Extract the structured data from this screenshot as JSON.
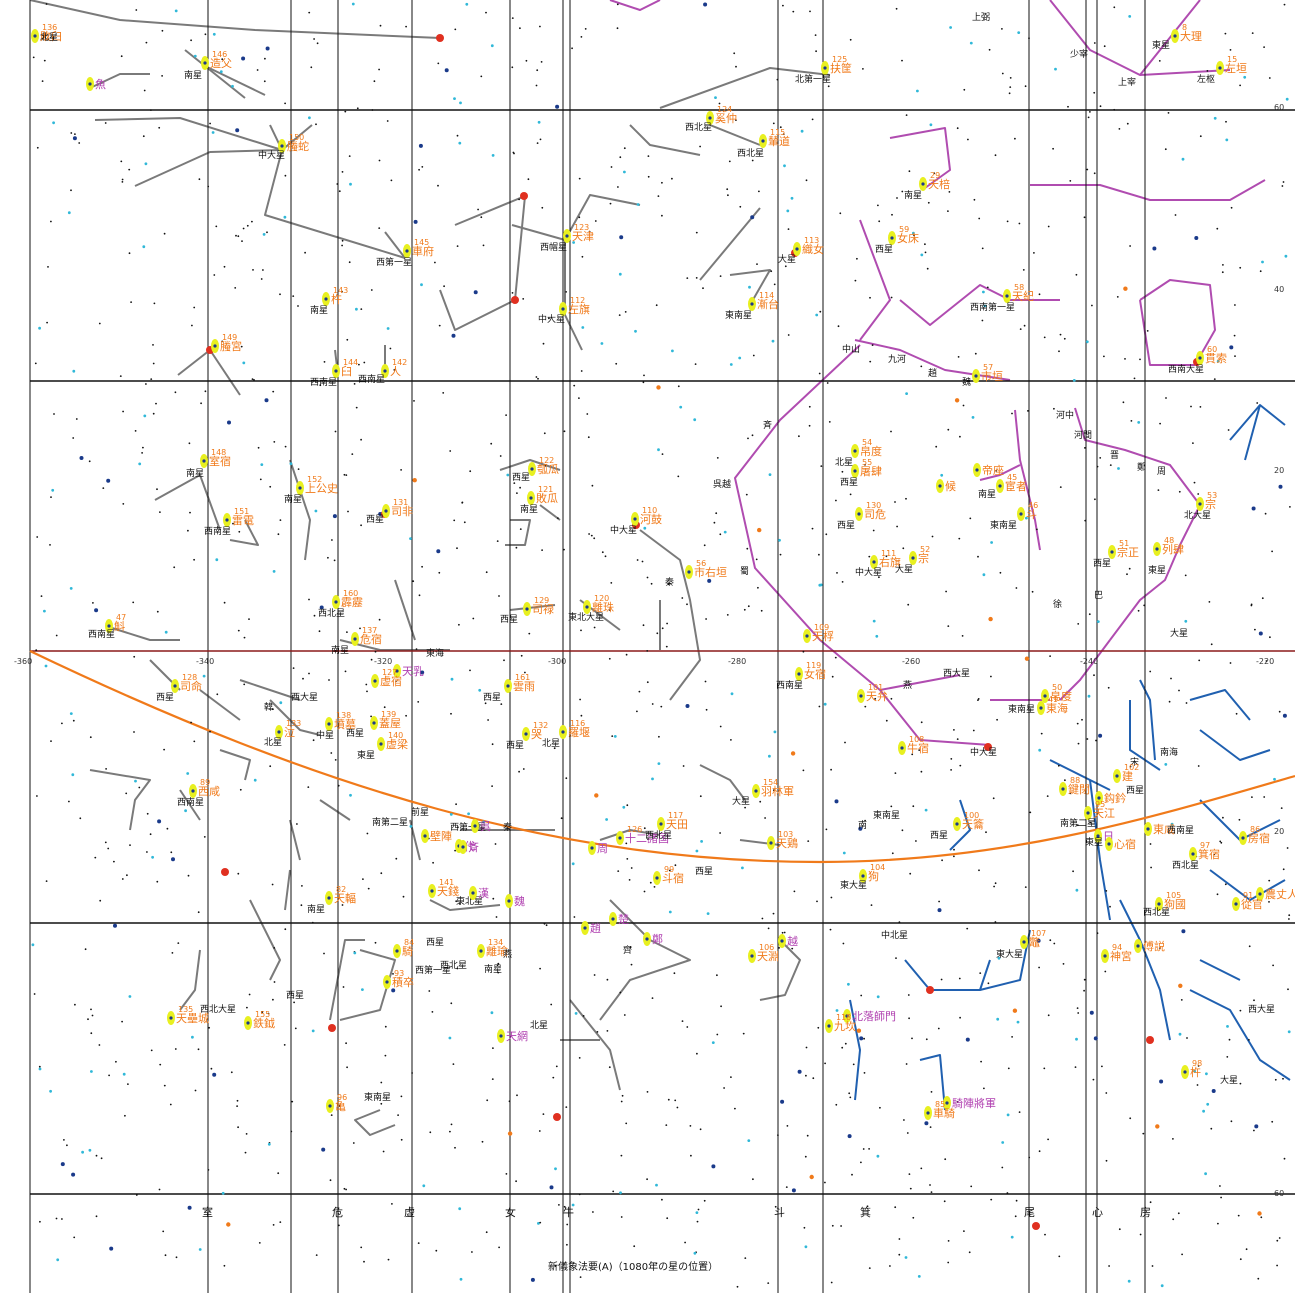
{
  "caption": "新儀象法要(A)（1080年の星の位置）",
  "ra_ticks": [
    "-360",
    "-340",
    "-320",
    "-300",
    "-280",
    "-260",
    "-240",
    "-220"
  ],
  "dec_ticks": [
    "60",
    "40",
    "20",
    "20",
    "60"
  ],
  "mansions": [
    "室",
    "危",
    "虚",
    "女",
    "牛",
    "斗",
    "箕",
    "尾",
    "心",
    "房"
  ],
  "colors": {
    "grid": "#111111",
    "equator": "#8b1a1a",
    "ecliptic": "#f07a1a",
    "gray_lines": "#7a7a7a",
    "purple_lines": "#b04cb0",
    "blue_lines": "#2060b0",
    "label_orange": "#f07a1a",
    "label_purple": "#b040b0",
    "star_yellow": "#e8f020",
    "star_red": "#e03020",
    "star_cyan": "#30b8d8",
    "star_navy": "#1a3a8a"
  },
  "labels": [
    {
      "t": "上弼",
      "c": "k",
      "n": ""
    },
    {
      "t": "少宰",
      "c": "k",
      "n": ""
    },
    {
      "t": "上宰",
      "c": "k",
      "n": ""
    },
    {
      "t": "東星",
      "c": "k",
      "n": ""
    },
    {
      "t": "大理",
      "c": "o",
      "n": "8"
    },
    {
      "t": "左垣",
      "c": "o",
      "n": "15"
    },
    {
      "t": "左枢",
      "c": "k",
      "n": ""
    },
    {
      "t": "造父",
      "c": "o",
      "n": "146"
    },
    {
      "t": "南星",
      "c": "k",
      "n": ""
    },
    {
      "t": "魚",
      "c": "p",
      "n": ""
    },
    {
      "t": "扶筐",
      "c": "o",
      "n": "125"
    },
    {
      "t": "北第一星",
      "c": "k",
      "n": ""
    },
    {
      "t": "螣蛇",
      "c": "o",
      "n": "150"
    },
    {
      "t": "中大星",
      "c": "k",
      "n": ""
    },
    {
      "t": "奚仲",
      "c": "o",
      "n": "124"
    },
    {
      "t": "西北星",
      "c": "k",
      "n": ""
    },
    {
      "t": "輦道",
      "c": "o",
      "n": "115"
    },
    {
      "t": "西北星",
      "c": "k",
      "n": ""
    },
    {
      "t": "天棓",
      "c": "o",
      "n": "29"
    },
    {
      "t": "南星",
      "c": "k",
      "n": ""
    },
    {
      "t": "車府",
      "c": "o",
      "n": "145"
    },
    {
      "t": "西第一星",
      "c": "k",
      "n": ""
    },
    {
      "t": "天津",
      "c": "o",
      "n": "123"
    },
    {
      "t": "西帽星",
      "c": "k",
      "n": ""
    },
    {
      "t": "織女",
      "c": "o",
      "n": "113"
    },
    {
      "t": "大星",
      "c": "k",
      "n": ""
    },
    {
      "t": "女床",
      "c": "o",
      "n": "59"
    },
    {
      "t": "西星",
      "c": "k",
      "n": ""
    },
    {
      "t": "杵",
      "c": "o",
      "n": "143"
    },
    {
      "t": "南星",
      "c": "k",
      "n": ""
    },
    {
      "t": "左旗",
      "c": "o",
      "n": "112"
    },
    {
      "t": "中大星",
      "c": "k",
      "n": ""
    },
    {
      "t": "漸台",
      "c": "o",
      "n": "114"
    },
    {
      "t": "東南星",
      "c": "k",
      "n": ""
    },
    {
      "t": "天紀",
      "c": "o",
      "n": "58"
    },
    {
      "t": "西南第一星",
      "c": "k",
      "n": ""
    },
    {
      "t": "螣宮",
      "c": "o",
      "n": "149"
    },
    {
      "t": "臼",
      "c": "o",
      "n": "144"
    },
    {
      "t": "西南星",
      "c": "k",
      "n": ""
    },
    {
      "t": "人",
      "c": "o",
      "n": "142"
    },
    {
      "t": "西南星",
      "c": "k",
      "n": ""
    },
    {
      "t": "中山",
      "c": "k",
      "n": ""
    },
    {
      "t": "九河",
      "c": "k",
      "n": ""
    },
    {
      "t": "趙",
      "c": "k",
      "n": ""
    },
    {
      "t": "魏",
      "c": "k",
      "n": ""
    },
    {
      "t": "市垣",
      "c": "o",
      "n": "57"
    },
    {
      "t": "貫索",
      "c": "o",
      "n": "60"
    },
    {
      "t": "西南大星",
      "c": "k",
      "n": ""
    },
    {
      "t": "河中",
      "c": "k",
      "n": ""
    },
    {
      "t": "河間",
      "c": "k",
      "n": ""
    },
    {
      "t": "晋",
      "c": "k",
      "n": ""
    },
    {
      "t": "鄭",
      "c": "k",
      "n": ""
    },
    {
      "t": "周",
      "c": "k",
      "n": ""
    },
    {
      "t": "斉",
      "c": "k",
      "n": ""
    },
    {
      "t": "室宿",
      "c": "o",
      "n": "148"
    },
    {
      "t": "南星",
      "c": "k",
      "n": ""
    },
    {
      "t": "上公史",
      "c": "o",
      "n": "152"
    },
    {
      "t": "南星",
      "c": "k",
      "n": ""
    },
    {
      "t": "瓠瓜",
      "c": "o",
      "n": "122"
    },
    {
      "t": "西星",
      "c": "k",
      "n": ""
    },
    {
      "t": "敗瓜",
      "c": "o",
      "n": "121"
    },
    {
      "t": "南星",
      "c": "k",
      "n": ""
    },
    {
      "t": "帛度",
      "c": "o",
      "n": "54"
    },
    {
      "t": "北星",
      "c": "k",
      "n": ""
    },
    {
      "t": "屠肆",
      "c": "o",
      "n": "55"
    },
    {
      "t": "西星",
      "c": "k",
      "n": ""
    },
    {
      "t": "帝座",
      "c": "o",
      "n": ""
    },
    {
      "t": "候",
      "c": "o",
      "n": ""
    },
    {
      "t": "宦者",
      "c": "o",
      "n": "45"
    },
    {
      "t": "南星",
      "c": "k",
      "n": ""
    },
    {
      "t": "斗",
      "c": "o",
      "n": "46"
    },
    {
      "t": "東南星",
      "c": "k",
      "n": ""
    },
    {
      "t": "呉越",
      "c": "k",
      "n": ""
    },
    {
      "t": "河鼓",
      "c": "o",
      "n": "110"
    },
    {
      "t": "中大星",
      "c": "k",
      "n": ""
    },
    {
      "t": "雷電",
      "c": "o",
      "n": "151"
    },
    {
      "t": "西南星",
      "c": "k",
      "n": ""
    },
    {
      "t": "司非",
      "c": "o",
      "n": "131"
    },
    {
      "t": "西星",
      "c": "k",
      "n": ""
    },
    {
      "t": "司危",
      "c": "o",
      "n": "130"
    },
    {
      "t": "西星",
      "c": "k",
      "n": ""
    },
    {
      "t": "宗",
      "c": "o",
      "n": "53"
    },
    {
      "t": "北大星",
      "c": "k",
      "n": ""
    },
    {
      "t": "市右垣",
      "c": "o",
      "n": "56"
    },
    {
      "t": "秦",
      "c": "k",
      "n": ""
    },
    {
      "t": "右旗",
      "c": "o",
      "n": "111"
    },
    {
      "t": "中大星",
      "c": "k",
      "n": ""
    },
    {
      "t": "宗",
      "c": "o",
      "n": "52"
    },
    {
      "t": "大星",
      "c": "k",
      "n": ""
    },
    {
      "t": "宗正",
      "c": "o",
      "n": "51"
    },
    {
      "t": "西星",
      "c": "k",
      "n": ""
    },
    {
      "t": "列肆",
      "c": "o",
      "n": "48"
    },
    {
      "t": "東星",
      "c": "k",
      "n": ""
    },
    {
      "t": "蜀",
      "c": "k",
      "n": ""
    },
    {
      "t": "巴",
      "c": "k",
      "n": ""
    },
    {
      "t": "徐",
      "c": "k",
      "n": ""
    },
    {
      "t": "斛",
      "c": "o",
      "n": "47"
    },
    {
      "t": "西南星",
      "c": "k",
      "n": ""
    },
    {
      "t": "霹靂",
      "c": "o",
      "n": "160"
    },
    {
      "t": "西北星",
      "c": "k",
      "n": ""
    },
    {
      "t": "危宿",
      "c": "o",
      "n": "137"
    },
    {
      "t": "南星",
      "c": "k",
      "n": ""
    },
    {
      "t": "司禄",
      "c": "o",
      "n": "129"
    },
    {
      "t": "西星",
      "c": "k",
      "n": ""
    },
    {
      "t": "離珠",
      "c": "o",
      "n": "120"
    },
    {
      "t": "東北大星",
      "c": "k",
      "n": ""
    },
    {
      "t": "天桴",
      "c": "o",
      "n": "109"
    },
    {
      "t": "大星",
      "c": "k",
      "n": ""
    },
    {
      "t": "東海",
      "c": "k",
      "n": ""
    },
    {
      "t": "天乳",
      "c": "p",
      "n": ""
    },
    {
      "t": "虚宿",
      "c": "o",
      "n": "127"
    },
    {
      "t": "司命",
      "c": "o",
      "n": "128"
    },
    {
      "t": "西星",
      "c": "k",
      "n": ""
    },
    {
      "t": "雲雨",
      "c": "o",
      "n": "161"
    },
    {
      "t": "西星",
      "c": "k",
      "n": ""
    },
    {
      "t": "女宿",
      "c": "o",
      "n": "119"
    },
    {
      "t": "西南星",
      "c": "k",
      "n": ""
    },
    {
      "t": "天弁",
      "c": "o",
      "n": "101"
    },
    {
      "t": "西大星",
      "c": "k",
      "n": ""
    },
    {
      "t": "燕",
      "c": "k",
      "n": ""
    },
    {
      "t": "帛度",
      "c": "o",
      "n": "50"
    },
    {
      "t": "東南星",
      "c": "k",
      "n": ""
    },
    {
      "t": "東海",
      "c": "o",
      "n": "49"
    },
    {
      "t": "西大星",
      "c": "k",
      "n": ""
    },
    {
      "t": "韓",
      "c": "k",
      "n": ""
    },
    {
      "t": "墳墓",
      "c": "o",
      "n": "138"
    },
    {
      "t": "中星",
      "c": "k",
      "n": ""
    },
    {
      "t": "蓋屋",
      "c": "o",
      "n": "139"
    },
    {
      "t": "西星",
      "c": "k",
      "n": ""
    },
    {
      "t": "泣",
      "c": "o",
      "n": "133"
    },
    {
      "t": "北星",
      "c": "k",
      "n": ""
    },
    {
      "t": "虚梁",
      "c": "o",
      "n": "140"
    },
    {
      "t": "東星",
      "c": "k",
      "n": ""
    },
    {
      "t": "哭",
      "c": "o",
      "n": "132"
    },
    {
      "t": "西星",
      "c": "k",
      "n": ""
    },
    {
      "t": "羅堰",
      "c": "o",
      "n": "116"
    },
    {
      "t": "北星",
      "c": "k",
      "n": ""
    },
    {
      "t": "牛宿",
      "c": "o",
      "n": "108"
    },
    {
      "t": "中大星",
      "c": "k",
      "n": ""
    },
    {
      "t": "南海",
      "c": "k",
      "n": ""
    },
    {
      "t": "宋",
      "c": "k",
      "n": ""
    },
    {
      "t": "西咸",
      "c": "o",
      "n": "89"
    },
    {
      "t": "西南星",
      "c": "k",
      "n": ""
    },
    {
      "t": "羽林軍",
      "c": "o",
      "n": "154"
    },
    {
      "t": "大星",
      "c": "k",
      "n": ""
    },
    {
      "t": "建",
      "c": "o",
      "n": "102"
    },
    {
      "t": "西星",
      "c": "k",
      "n": ""
    },
    {
      "t": "鍵閉",
      "c": "o",
      "n": "88"
    },
    {
      "t": "鈎鈐",
      "c": "o",
      "n": ""
    },
    {
      "t": "東南星",
      "c": "k",
      "n": ""
    },
    {
      "t": "南",
      "c": "k",
      "n": ""
    },
    {
      "t": "天籥",
      "c": "o",
      "n": "100"
    },
    {
      "t": "西星",
      "c": "k",
      "n": ""
    },
    {
      "t": "天江",
      "c": "o",
      "n": "95"
    },
    {
      "t": "南第二星",
      "c": "k",
      "n": ""
    },
    {
      "t": "東咸",
      "c": "o",
      "n": ""
    },
    {
      "t": "西南星",
      "c": "k",
      "n": ""
    },
    {
      "t": "房宿",
      "c": "o",
      "n": "86"
    },
    {
      "t": "日",
      "c": "p",
      "n": ""
    },
    {
      "t": "東星",
      "c": "k",
      "n": ""
    },
    {
      "t": "心宿",
      "c": "o",
      "n": ""
    },
    {
      "t": "前星",
      "c": "k",
      "n": ""
    },
    {
      "t": "南第二星",
      "c": "k",
      "n": ""
    },
    {
      "t": "壁陣",
      "c": "o",
      "n": ""
    },
    {
      "t": "西第一星",
      "c": "k",
      "n": ""
    },
    {
      "t": "呉",
      "c": "p",
      "n": ""
    },
    {
      "t": "代",
      "c": "p",
      "n": ""
    },
    {
      "t": "斉",
      "c": "p",
      "n": ""
    },
    {
      "t": "秦",
      "c": "k",
      "n": ""
    },
    {
      "t": "十二諸国",
      "c": "p",
      "n": "126"
    },
    {
      "t": "周",
      "c": "p",
      "n": ""
    },
    {
      "t": "天田",
      "c": "o",
      "n": "117"
    },
    {
      "t": "西北星",
      "c": "k",
      "n": ""
    },
    {
      "t": "天鶏",
      "c": "o",
      "n": "103"
    },
    {
      "t": "西星",
      "c": "k",
      "n": ""
    },
    {
      "t": "斗宿",
      "c": "o",
      "n": "99"
    },
    {
      "t": "狗",
      "c": "o",
      "n": "104"
    },
    {
      "t": "東大星",
      "c": "k",
      "n": ""
    },
    {
      "t": "箕宿",
      "c": "o",
      "n": "97"
    },
    {
      "t": "西北星",
      "c": "k",
      "n": ""
    },
    {
      "t": "天輻",
      "c": "o",
      "n": "82"
    },
    {
      "t": "南星",
      "c": "k",
      "n": ""
    },
    {
      "t": "天錢",
      "c": "o",
      "n": "141"
    },
    {
      "t": "東北星",
      "c": "k",
      "n": ""
    },
    {
      "t": "漢",
      "c": "p",
      "n": ""
    },
    {
      "t": "魏",
      "c": "p",
      "n": ""
    },
    {
      "t": "楚",
      "c": "p",
      "n": ""
    },
    {
      "t": "趙",
      "c": "p",
      "n": ""
    },
    {
      "t": "狗國",
      "c": "o",
      "n": "105"
    },
    {
      "t": "西北星",
      "c": "k",
      "n": ""
    },
    {
      "t": "農丈人",
      "c": "o",
      "n": ""
    },
    {
      "t": "從官",
      "c": "o",
      "n": "91"
    },
    {
      "t": "西星",
      "c": "k",
      "n": ""
    },
    {
      "t": "騎",
      "c": "o",
      "n": "84"
    },
    {
      "t": "西北星",
      "c": "k",
      "n": ""
    },
    {
      "t": "離瑜",
      "c": "o",
      "n": "134"
    },
    {
      "t": "南星",
      "c": "k",
      "n": ""
    },
    {
      "t": "燕",
      "c": "k",
      "n": ""
    },
    {
      "t": "鄭",
      "c": "p",
      "n": ""
    },
    {
      "t": "齊",
      "c": "k",
      "n": ""
    },
    {
      "t": "越",
      "c": "p",
      "n": ""
    },
    {
      "t": "天淵",
      "c": "o",
      "n": "106"
    },
    {
      "t": "中北星",
      "c": "k",
      "n": ""
    },
    {
      "t": "鼈",
      "c": "o",
      "n": "107"
    },
    {
      "t": "東大星",
      "c": "k",
      "n": ""
    },
    {
      "t": "傅説",
      "c": "o",
      "n": ""
    },
    {
      "t": "神宮",
      "c": "o",
      "n": "94"
    },
    {
      "t": "西第一星",
      "c": "k",
      "n": ""
    },
    {
      "t": "積卒",
      "c": "o",
      "n": "93"
    },
    {
      "t": "西北大星",
      "c": "k",
      "n": ""
    },
    {
      "t": "天壘城",
      "c": "o",
      "n": "135"
    },
    {
      "t": "西星",
      "c": "k",
      "n": ""
    },
    {
      "t": "鉄鉞",
      "c": "o",
      "n": "155"
    },
    {
      "t": "北星",
      "c": "k",
      "n": ""
    },
    {
      "t": "天網",
      "c": "p",
      "n": ""
    },
    {
      "t": "北落師門",
      "c": "p",
      "n": ""
    },
    {
      "t": "九坎",
      "c": "o",
      "n": "118"
    },
    {
      "t": "西大星",
      "c": "k",
      "n": ""
    },
    {
      "t": "杵",
      "c": "o",
      "n": "98"
    },
    {
      "t": "大星",
      "c": "k",
      "n": ""
    },
    {
      "t": "騎陣將軍",
      "c": "p",
      "n": ""
    },
    {
      "t": "車騎",
      "c": "o",
      "n": "85"
    },
    {
      "t": "東南星",
      "c": "k",
      "n": ""
    },
    {
      "t": "亀",
      "c": "o",
      "n": "96"
    },
    {
      "t": "大星",
      "c": "k",
      "n": ""
    },
    {
      "t": "敗臼",
      "c": "o",
      "n": "136"
    },
    {
      "t": "北星",
      "c": "k",
      "n": ""
    }
  ]
}
